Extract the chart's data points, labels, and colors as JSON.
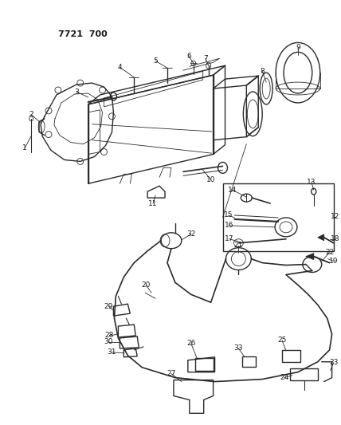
{
  "title": "7721  700",
  "bg_color": "#ffffff",
  "line_color": "#2a2a2a",
  "text_color": "#1a1a1a",
  "fig_width": 4.28,
  "fig_height": 5.33,
  "dpi": 100
}
